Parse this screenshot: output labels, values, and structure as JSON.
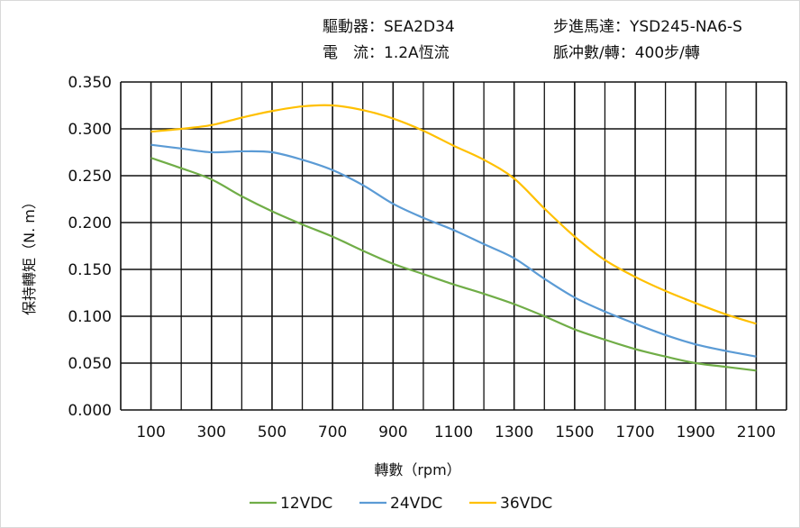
{
  "header": {
    "driver": "驅動器：SEA2D34",
    "motor": "步進馬達：YSD245-NA6-S",
    "current": "電　流：1.2A恆流",
    "pulses": "脈冲數/轉：400步/轉"
  },
  "chart_data": {
    "type": "line",
    "title": "",
    "xlabel": "轉數（rpm）",
    "ylabel": "保持轉矩（N. m）",
    "xlim": [
      0,
      2200
    ],
    "ylim": [
      0,
      0.35
    ],
    "grid": true,
    "legend_position": "bottom",
    "x_ticks": [
      "100",
      "300",
      "500",
      "700",
      "900",
      "1100",
      "1300",
      "1500",
      "1700",
      "1900",
      "2100"
    ],
    "y_ticks": [
      "0.000",
      "0.050",
      "0.100",
      "0.150",
      "0.200",
      "0.250",
      "0.300",
      "0.350"
    ],
    "x": [
      100,
      200,
      300,
      400,
      500,
      600,
      700,
      800,
      900,
      1000,
      1100,
      1200,
      1300,
      1400,
      1500,
      1600,
      1700,
      1800,
      1900,
      2000,
      2100
    ],
    "series": [
      {
        "name": "12VDC",
        "color": "#70ad47",
        "values": [
          0.269,
          0.258,
          0.246,
          0.228,
          0.212,
          0.198,
          0.185,
          0.17,
          0.156,
          0.145,
          0.134,
          0.124,
          0.113,
          0.1,
          0.086,
          0.075,
          0.065,
          0.057,
          0.05,
          0.046,
          0.042
        ]
      },
      {
        "name": "24VDC",
        "color": "#5b9bd5",
        "values": [
          0.283,
          0.279,
          0.275,
          0.276,
          0.275,
          0.267,
          0.256,
          0.24,
          0.22,
          0.205,
          0.192,
          0.177,
          0.162,
          0.14,
          0.12,
          0.105,
          0.092,
          0.08,
          0.07,
          0.063,
          0.057
        ]
      },
      {
        "name": "36VDC",
        "color": "#ffc000",
        "values": [
          0.297,
          0.3,
          0.304,
          0.312,
          0.319,
          0.324,
          0.325,
          0.32,
          0.311,
          0.298,
          0.282,
          0.267,
          0.247,
          0.215,
          0.185,
          0.16,
          0.142,
          0.127,
          0.114,
          0.102,
          0.092
        ]
      }
    ]
  }
}
